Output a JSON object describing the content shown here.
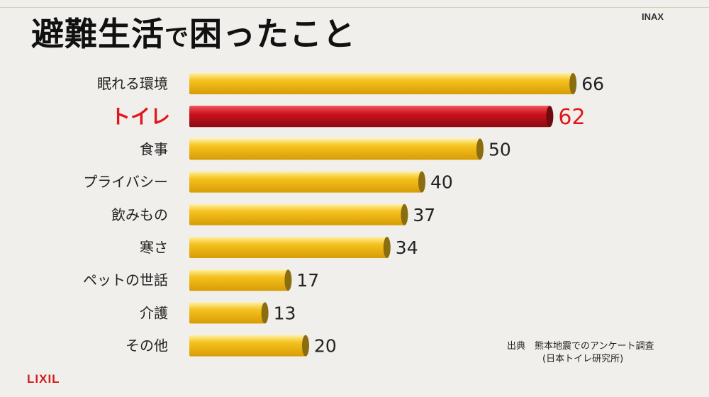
{
  "title": {
    "main": "避難生活",
    "particle": "で",
    "rest": "困ったこと"
  },
  "brand_top": "INAX",
  "brand_bottom": "LIXIL",
  "source": {
    "line1": "出典　熊本地震でのアンケート調査",
    "line2": "(日本トイレ研究所)"
  },
  "colors": {
    "bar_fill": "#f5c21e",
    "bar_edge": "#8a6d10",
    "highlight_fill": "#c9121d",
    "highlight_text": "#e0161a"
  },
  "chart_data": {
    "type": "bar",
    "orientation": "horizontal",
    "categories": [
      "眠れる環境",
      "トイレ",
      "食事",
      "プライバシー",
      "飲みもの",
      "寒さ",
      "ペットの世話",
      "介護",
      "その他"
    ],
    "values": [
      66,
      62,
      50,
      40,
      37,
      34,
      17,
      13,
      20
    ],
    "highlight_index": 1,
    "title": "避難生活で困ったこと",
    "xlabel": "",
    "ylabel": "",
    "xlim": [
      0,
      70
    ],
    "grid": false
  }
}
